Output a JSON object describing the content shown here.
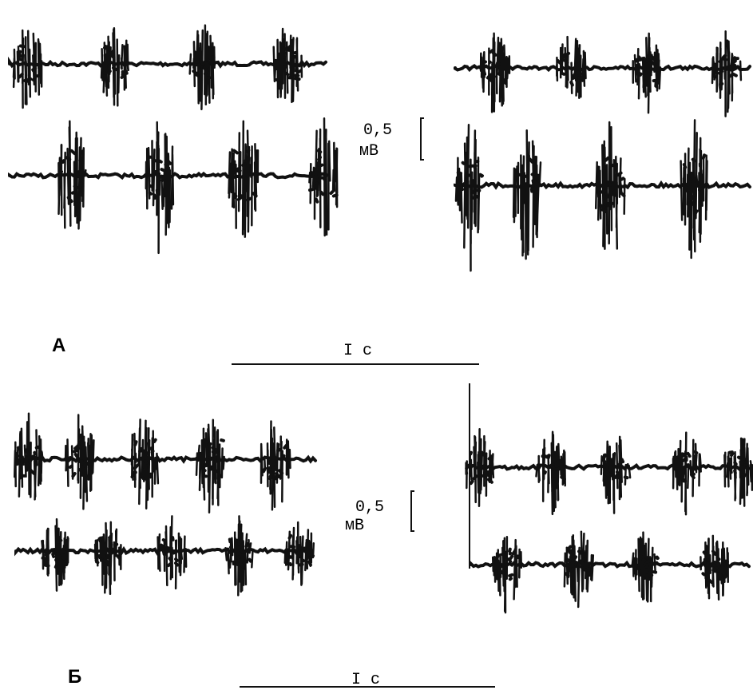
{
  "panels": [
    {
      "label": "А",
      "scale_value": "0,5",
      "scale_unit": "мВ",
      "time_scale": "I c"
    },
    {
      "label": "Б",
      "scale_value": "0,5",
      "scale_unit": "мВ",
      "time_scale": "I c"
    }
  ]
}
